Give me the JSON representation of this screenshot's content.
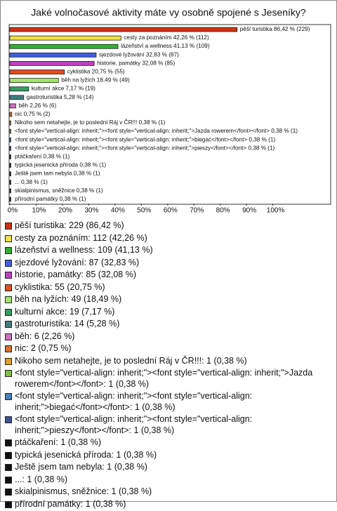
{
  "chart_data": {
    "type": "bar",
    "title": "Jaké volnočasové aktivity máte vy osobně spojené s Jeseníky?",
    "categories": [
      "pěší turistika",
      "cesty za poznáním",
      "lázeňství a wellness",
      "sjezdové lyžování",
      "historie, památky",
      "cyklistika",
      "běh na lyžích",
      "kulturní akce",
      "gastroturistika",
      "běh",
      "nic",
      "Nikoho sem netahejte, je to poslední Ráj v ČR!!!",
      "<font style=\"vertical-align: inherit;\"><font style=\"vertical-align: inherit;\">Jazda rowerem</font></font>",
      "<font style=\"vertical-align: inherit;\"><font style=\"vertical-align: inherit;\">biegać</font></font>",
      "<font style=\"vertical-align: inherit;\"><font style=\"vertical-align: inherit;\">pieszy</font></font>",
      "ptáčkaření",
      "typická jesenická příroda",
      "Ještě jsem tam nebyla",
      "...",
      "skialpinismus, sněžnice",
      "přírodní památky"
    ],
    "values": [
      86.42,
      42.26,
      41.13,
      32.83,
      32.08,
      20.75,
      18.49,
      7.17,
      5.28,
      2.26,
      0.75,
      0.38,
      0.38,
      0.38,
      0.38,
      0.38,
      0.38,
      0.38,
      0.38,
      0.38,
      0.38
    ],
    "value_labels": [
      "86,42 % (229)",
      "42,26 % (112)",
      "41,13 % (109)",
      "32,83 % (87)",
      "32,08 % (85)",
      "20,75 % (55)",
      "18,49 % (49)",
      "7,17 % (19)",
      "5,28 % (14)",
      "2,26 % (6)",
      "0,75 % (2)",
      "0,38 % (1)",
      "0,38 % (1)",
      "0,38 % (1)",
      "0,38 % (1)",
      "0,38 % (1)",
      "0,38 % (1)",
      "0,38 % (1)",
      "0,38 % (1)",
      "0,38 % (1)",
      "0,38 % (1)"
    ],
    "legend_labels": [
      "pěší turistika: 229 (86,42 %)",
      "cesty za poznáním: 112 (42,26 %)",
      "lázeňství a wellness: 109 (41,13 %)",
      "sjezdové lyžování: 87 (32,83 %)",
      "historie, památky: 85 (32,08 %)",
      "cyklistika: 55 (20,75 %)",
      "běh na lyžích: 49 (18,49 %)",
      "kulturní akce: 19 (7,17 %)",
      "gastroturistika: 14 (5,28 %)",
      "běh: 6 (2,26 %)",
      "nic: 2 (0,75 %)",
      "Nikoho sem netahejte, je to poslední Ráj v ČR!!!: 1 (0,38 %)",
      "<font style=\"vertical-align: inherit;\"><font style=\"vertical-align: inherit;\">Jazda rowerem</font></font>: 1 (0,38 %)",
      "<font style=\"vertical-align: inherit;\"><font style=\"vertical-align: inherit;\">biegać</font></font>: 1 (0,38 %)",
      "<font style=\"vertical-align: inherit;\"><font style=\"vertical-align: inherit;\">pieszy</font></font>: 1 (0,38 %)",
      "ptáčkaření: 1 (0,38 %)",
      "typická jesenická příroda: 1 (0,38 %)",
      "Ještě jsem tam nebyla: 1 (0,38 %)",
      "...: 1 (0,38 %)",
      "skialpinismus, sněžnice: 1 (0,38 %)",
      "přírodní památky: 1 (0,38 %)"
    ],
    "colors": [
      "#d2300f",
      "#f2e23c",
      "#2fb02f",
      "#3f5fe0",
      "#c03fc0",
      "#e04f1f",
      "#a3e46f",
      "#2f9f5f",
      "#3f7f7f",
      "#d06fc0",
      "#e0701f",
      "#e0a020",
      "#80c040",
      "#4080c0",
      "#405090",
      "#111111",
      "#111111",
      "#111111",
      "#111111",
      "#111111",
      "#111111"
    ],
    "xlim": [
      0,
      122
    ],
    "xticks": [
      {
        "value": 0,
        "label": "0%"
      },
      {
        "value": 10,
        "label": "10%"
      },
      {
        "value": 20,
        "label": "20%"
      },
      {
        "value": 30,
        "label": "30%"
      },
      {
        "value": 40,
        "label": "40%"
      },
      {
        "value": 50,
        "label": "50%"
      },
      {
        "value": 60,
        "label": "60%"
      },
      {
        "value": 70,
        "label": "70%"
      },
      {
        "value": 80,
        "label": "80%"
      },
      {
        "value": 90,
        "label": "90%"
      },
      {
        "value": 100,
        "label": "100%"
      }
    ]
  }
}
